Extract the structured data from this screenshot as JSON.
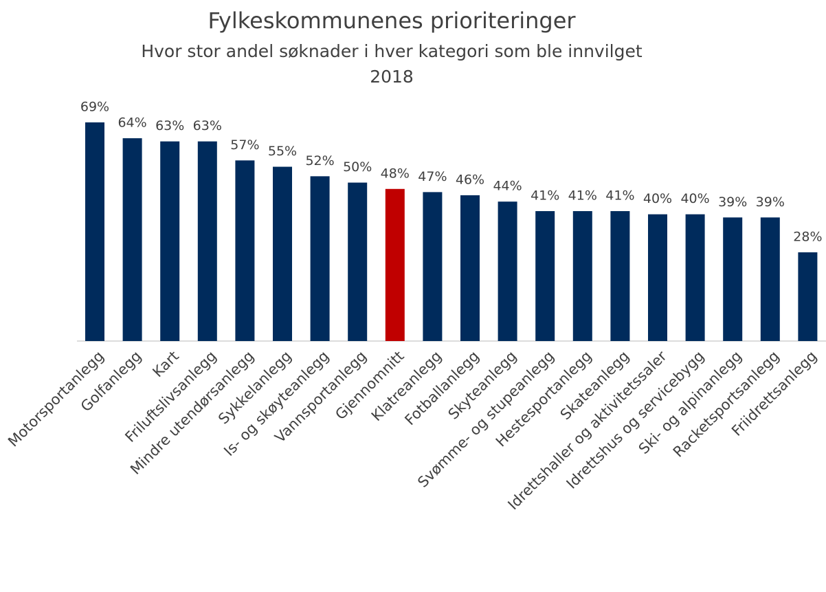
{
  "chart_data": {
    "type": "bar",
    "title": "Fylkeskommunenes prioriteringer",
    "subtitle": "Hvor stor andel søknader i hver kategori som ble innvilget",
    "subtitle2": "2018",
    "categories": [
      "Motorsportanlegg",
      "Golfanlegg",
      "Kart",
      "Friluftslivsanlegg",
      "Mindre utendørsanlegg",
      "Sykkelanlegg",
      "Is- og skøyteanlegg",
      "Vannsportanlegg",
      "Gjennomnitt",
      "Klatreanlegg",
      "Fotballanlegg",
      "Skyteanlegg",
      "Svømme- og stupeanlegg",
      "Hestesportanlegg",
      "Skateanlegg",
      "Idrettshaller og aktivitetssaler",
      "Idrettshus og servicebygg",
      "Ski- og alpinanlegg",
      "Racketsportsanlegg",
      "Friidrettsanlegg"
    ],
    "values": [
      69,
      64,
      63,
      63,
      57,
      55,
      52,
      50,
      48,
      47,
      46,
      44,
      41,
      41,
      41,
      40,
      40,
      39,
      39,
      28
    ],
    "value_labels": [
      "69%",
      "64%",
      "63%",
      "63%",
      "57%",
      "55%",
      "52%",
      "50%",
      "48%",
      "47%",
      "46%",
      "44%",
      "41%",
      "41%",
      "41%",
      "40%",
      "40%",
      "39%",
      "39%",
      "28%"
    ],
    "colors": [
      "#002b5c",
      "#002b5c",
      "#002b5c",
      "#002b5c",
      "#002b5c",
      "#002b5c",
      "#002b5c",
      "#002b5c",
      "#c00000",
      "#002b5c",
      "#002b5c",
      "#002b5c",
      "#002b5c",
      "#002b5c",
      "#002b5c",
      "#002b5c",
      "#002b5c",
      "#002b5c",
      "#002b5c",
      "#002b5c"
    ]
  }
}
